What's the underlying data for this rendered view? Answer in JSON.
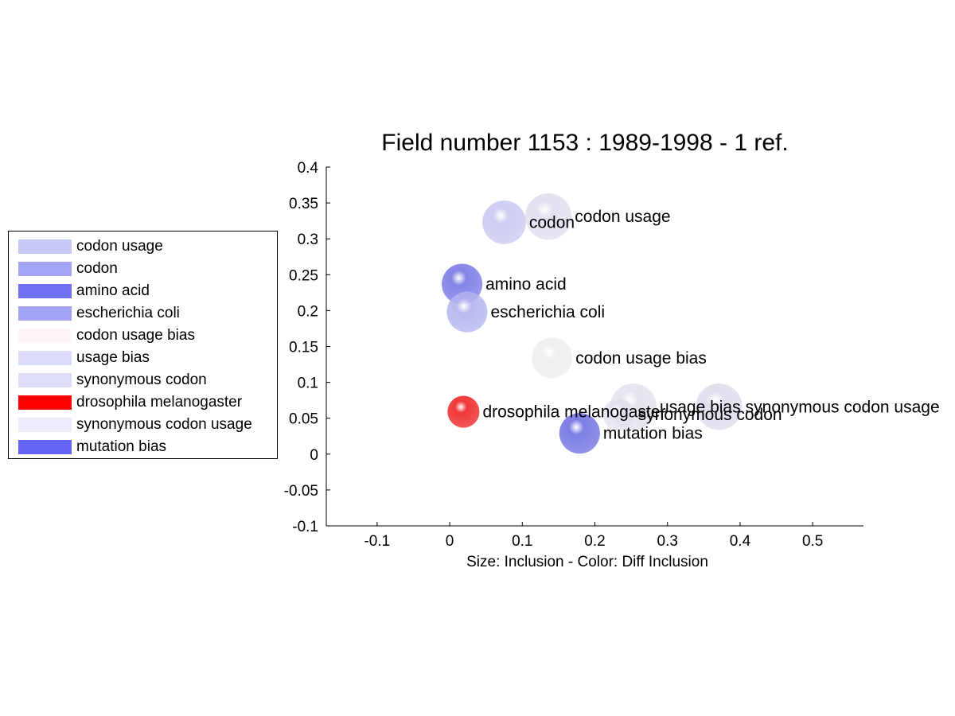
{
  "chart_data": {
    "type": "scatter",
    "title": "Field number 1153 : 1989-1998  - 1 ref.",
    "xlabel": "Size: Inclusion - Color: Diff Inclusion",
    "ylabel": "",
    "xlim": [
      -0.17,
      0.57
    ],
    "ylim": [
      -0.1,
      0.4
    ],
    "xticks": [
      -0.1,
      0,
      0.1,
      0.2,
      0.3,
      0.4,
      0.5
    ],
    "xtick_labels": [
      "-0.1",
      "0",
      "0.1",
      "0.2",
      "0.3",
      "0.4",
      "0.5"
    ],
    "yticks": [
      -0.1,
      -0.05,
      0,
      0.05,
      0.1,
      0.15,
      0.2,
      0.25,
      0.3,
      0.35,
      0.4
    ],
    "ytick_labels": [
      "-0.1",
      "-0.05",
      "0",
      "0.05",
      "0.1",
      "0.15",
      "0.2",
      "0.25",
      "0.3",
      "0.35",
      "0.4"
    ],
    "grid": false,
    "legend_placement": "left-outside",
    "points": [
      {
        "label": "codon",
        "x": 0.075,
        "y": 0.323,
        "size": 0.03,
        "color": "#c9c9f2"
      },
      {
        "label": "codon usage",
        "x": 0.136,
        "y": 0.331,
        "size": 0.032,
        "color": "#dedef0"
      },
      {
        "label": "amino acid",
        "x": 0.017,
        "y": 0.237,
        "size": 0.028,
        "color": "#7878e6"
      },
      {
        "label": "escherichia coli",
        "x": 0.024,
        "y": 0.198,
        "size": 0.028,
        "color": "#b3b3ee"
      },
      {
        "label": "codon usage bias",
        "x": 0.141,
        "y": 0.134,
        "size": 0.028,
        "color": "#eeeeee"
      },
      {
        "label": "drosophila melanogaster",
        "x": 0.019,
        "y": 0.059,
        "size": 0.022,
        "color": "#ee2222"
      },
      {
        "label": "usage bias",
        "x": 0.253,
        "y": 0.066,
        "size": 0.032,
        "color": "#e2e2ef"
      },
      {
        "label": "synonymous codon",
        "x": 0.233,
        "y": 0.055,
        "size": 0.022,
        "color": "#e2e2ef"
      },
      {
        "label": "synonymous codon usage",
        "x": 0.371,
        "y": 0.066,
        "size": 0.032,
        "color": "#dcdcee"
      },
      {
        "label": "mutation bias",
        "x": 0.179,
        "y": 0.029,
        "size": 0.028,
        "color": "#7070e2"
      }
    ],
    "legend": [
      {
        "label": "codon usage",
        "color": "#c8c8f7"
      },
      {
        "label": "codon",
        "color": "#a5a5f5"
      },
      {
        "label": "amino acid",
        "color": "#7171f2"
      },
      {
        "label": "escherichia coli",
        "color": "#a3a3f5"
      },
      {
        "label": "codon usage bias",
        "color": "#fff7f7"
      },
      {
        "label": "usage bias",
        "color": "#dcdcfb"
      },
      {
        "label": "synonymous codon",
        "color": "#dedefa"
      },
      {
        "label": "drosophila melanogaster",
        "color": "#ff0000"
      },
      {
        "label": "synonymous codon usage",
        "color": "#ececfc"
      },
      {
        "label": "mutation bias",
        "color": "#6565f5"
      }
    ]
  }
}
